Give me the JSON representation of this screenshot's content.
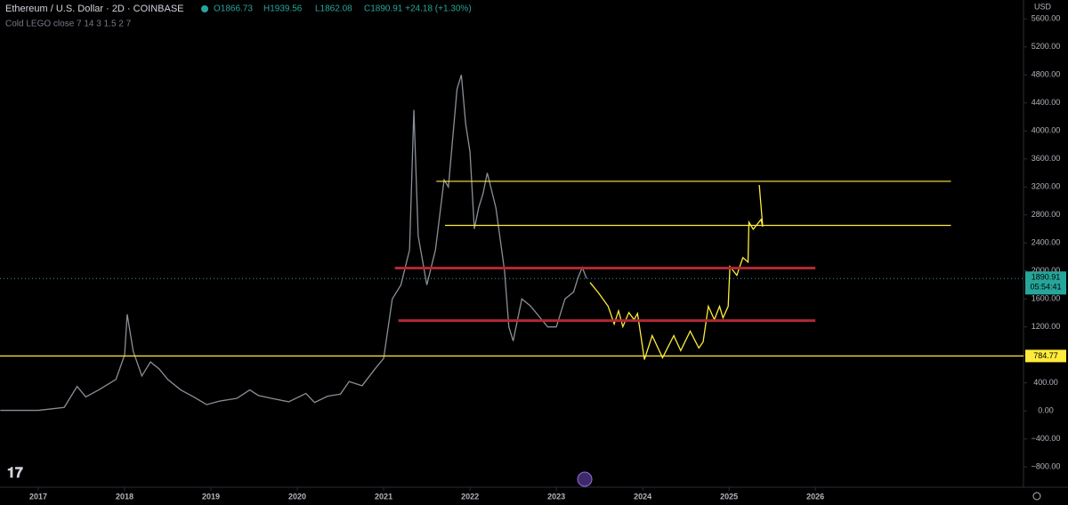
{
  "chart_data": {
    "type": "line",
    "title": "Ethereum / U.S. Dollar · 2D · COINBASE",
    "ohlc": [
      "O1866.73",
      "H1939.56",
      "L1862.08",
      "C1890.91 +24.18 (+1.30%)"
    ],
    "indicator": "Cold LEGO close 7 14 3 1.5 2 7",
    "currency": "USD",
    "last_price": 1890.91,
    "countdown": "05:54:41",
    "xlim": [
      2016.557,
      2028.41
    ],
    "ylim": [
      -1090,
      5870
    ],
    "xticks": [
      2017,
      2018,
      2019,
      2020,
      2021,
      2022,
      2023,
      2024,
      2025,
      2026
    ],
    "yticks": [
      {
        "value": -800,
        "label": "−800.00"
      },
      {
        "value": -400,
        "label": "−400.00"
      },
      {
        "value": 0,
        "label": "0.00"
      },
      {
        "value": 400,
        "label": "400.00"
      },
      {
        "value": 800,
        "label": "800.00"
      },
      {
        "value": 1200,
        "label": "1200.00"
      },
      {
        "value": 1600,
        "label": "1600.00"
      },
      {
        "value": 2000,
        "label": "2000.00"
      },
      {
        "value": 2400,
        "label": "2400.00"
      },
      {
        "value": 2800,
        "label": "2800.00"
      },
      {
        "value": 3200,
        "label": "3200.00"
      },
      {
        "value": 3600,
        "label": "3600.00"
      },
      {
        "value": 4000,
        "label": "4000.00"
      },
      {
        "value": 4400,
        "label": "4400.00"
      },
      {
        "value": 4800,
        "label": "4800.00"
      },
      {
        "value": 5200,
        "label": "5200.00"
      },
      {
        "value": 5600,
        "label": "5600.00"
      }
    ],
    "series": [
      {
        "color": "#8a8f98",
        "x": [
          2016.56,
          2017.0,
          2017.3,
          2017.45,
          2017.55,
          2017.7,
          2017.9,
          2018.0,
          2018.03,
          2018.1,
          2018.2,
          2018.3,
          2018.4,
          2018.5,
          2018.65,
          2018.8,
          2018.95,
          2019.1,
          2019.3,
          2019.45,
          2019.55,
          2019.7,
          2019.9,
          2020.1,
          2020.2,
          2020.35,
          2020.5,
          2020.6,
          2020.75,
          2020.9,
          2021.0,
          2021.1,
          2021.2,
          2021.3,
          2021.35,
          2021.4,
          2021.5,
          2021.6,
          2021.7,
          2021.75,
          2021.85,
          2021.9,
          2021.95,
          2022.0,
          2022.05,
          2022.1,
          2022.15,
          2022.2,
          2022.3,
          2022.4,
          2022.45,
          2022.5,
          2022.6,
          2022.7,
          2022.8,
          2022.9,
          2023.0,
          2023.1,
          2023.2,
          2023.25,
          2023.3,
          2023.35
        ],
        "values": [
          8,
          8,
          50,
          350,
          200,
          300,
          450,
          800,
          1380,
          850,
          500,
          700,
          600,
          450,
          300,
          200,
          90,
          140,
          180,
          300,
          220,
          180,
          130,
          250,
          120,
          210,
          240,
          420,
          360,
          600,
          750,
          1600,
          1800,
          2300,
          4300,
          2500,
          1800,
          2300,
          3300,
          3200,
          4600,
          4800,
          4100,
          3700,
          2600,
          2900,
          3100,
          3400,
          2900,
          2000,
          1200,
          1000,
          1600,
          1500,
          1350,
          1200,
          1200,
          1600,
          1700,
          1900,
          2050,
          1890.91
        ]
      },
      {
        "color": "#ffeb3b",
        "x": [
          2023.39,
          2023.49,
          2023.6,
          2023.67,
          2023.72,
          2023.77,
          2023.84,
          2023.9,
          2023.94,
          2024.02,
          2024.11,
          2024.23,
          2024.36,
          2024.44,
          2024.55,
          2024.65,
          2024.7,
          2024.76,
          2024.83,
          2024.89,
          2024.93,
          2024.99,
          2025.01,
          2025.09,
          2025.16,
          2025.22,
          2025.23,
          2025.28,
          2025.37,
          2025.39,
          2025.35
        ],
        "values": [
          1835,
          1684,
          1494,
          1241,
          1430,
          1203,
          1405,
          1304,
          1392,
          734,
          1076,
          759,
          1076,
          861,
          1139,
          899,
          987,
          1494,
          1304,
          1494,
          1329,
          1494,
          2063,
          1937,
          2190,
          2127,
          2696,
          2595,
          2734,
          2633,
          3228
        ]
      }
    ],
    "drawings": [
      {
        "color": "#ffeb3b",
        "y": 784.77,
        "x": [
          2016.557,
          2028.41
        ]
      },
      {
        "color": "#ffeb3b",
        "y": 3280,
        "x": [
          2021.61,
          2027.57
        ]
      },
      {
        "color": "#ffeb3b",
        "y": 2650,
        "x": [
          2021.71,
          2027.57
        ]
      },
      {
        "color": "#b22833",
        "y": 2040,
        "x": [
          2021.13,
          2026.0
        ]
      },
      {
        "color": "#b22833",
        "y": 1290,
        "x": [
          2021.17,
          2026.0
        ]
      }
    ]
  }
}
